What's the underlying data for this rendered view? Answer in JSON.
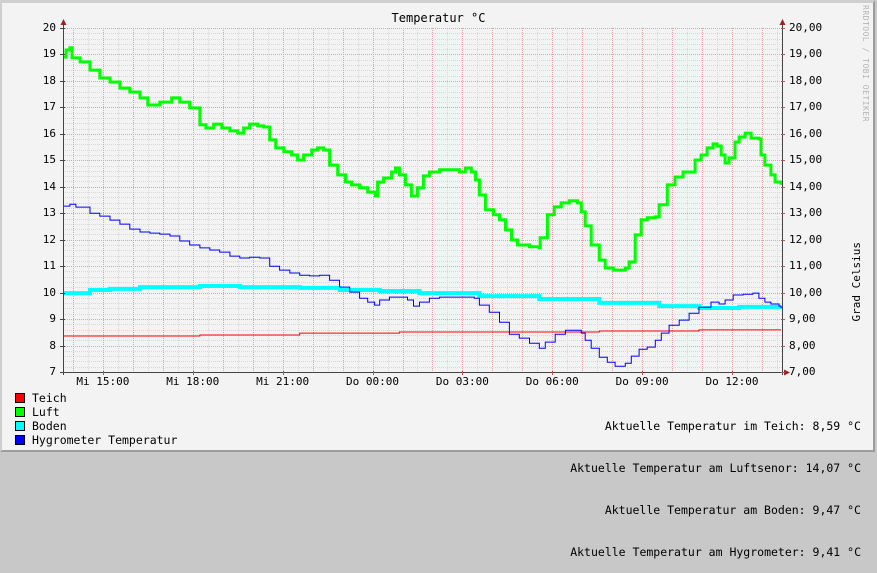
{
  "chart_data": {
    "type": "line",
    "title": "Temperatur °C",
    "ylabel": "Grad Celsius",
    "xlabel": "",
    "watermark": "RRDTOOL / TOBI OETIKER",
    "ylim": [
      7,
      20
    ],
    "y_ticks_left": [
      "20",
      "19",
      "18",
      "17",
      "16",
      "15",
      "14",
      "13",
      "12",
      "11",
      "10",
      "9",
      "8",
      "7"
    ],
    "y_ticks_right": [
      "20,00",
      "19,00",
      "18,00",
      "17,00",
      "16,00",
      "15,00",
      "14,00",
      "13,00",
      "12,00",
      "11,00",
      "10,00",
      "9,00",
      "8,00",
      "7,00"
    ],
    "x_range_hours": [
      0,
      24
    ],
    "x_start": "Mi 13:40",
    "x_ticks": [
      {
        "label": "Mi 15:00",
        "hour": 1.333
      },
      {
        "label": "Mi 18:00",
        "hour": 4.333
      },
      {
        "label": "Mi 21:00",
        "hour": 7.333
      },
      {
        "label": "Do 00:00",
        "hour": 10.333
      },
      {
        "label": "Do 03:00",
        "hour": 13.333
      },
      {
        "label": "Do 06:00",
        "hour": 16.333
      },
      {
        "label": "Do 09:00",
        "hour": 19.333
      },
      {
        "label": "Do 12:00",
        "hour": 22.333
      }
    ],
    "grid": true,
    "legend_position": "bottom-left",
    "series": [
      {
        "name": "Teich",
        "color": "#ff0000",
        "stroke": "#cc0000",
        "width": 1,
        "x": [
          0,
          4.57,
          7.9,
          11.23,
          14.57,
          17.9,
          21.23,
          23.97
        ],
        "values": [
          8.36,
          8.4,
          8.47,
          8.51,
          8.51,
          8.55,
          8.59,
          8.59
        ]
      },
      {
        "name": "Luft",
        "color": "#00ff00",
        "stroke": "#22ee22",
        "width": 3,
        "x": [
          0,
          0.1,
          0.23,
          0.3,
          0.57,
          0.9,
          1.23,
          1.57,
          1.9,
          2.23,
          2.57,
          2.83,
          3.23,
          3.63,
          3.9,
          4.23,
          4.57,
          4.77,
          5.03,
          5.3,
          5.57,
          5.83,
          6.03,
          6.23,
          6.5,
          6.7,
          6.9,
          7.1,
          7.37,
          7.63,
          7.83,
          8.03,
          8.3,
          8.5,
          8.7,
          8.9,
          9.17,
          9.43,
          9.63,
          9.9,
          10.17,
          10.43,
          10.5,
          10.7,
          10.97,
          11.1,
          11.23,
          11.43,
          11.63,
          11.83,
          12.03,
          12.23,
          12.57,
          12.9,
          13.23,
          13.43,
          13.63,
          13.77,
          13.9,
          14.1,
          14.37,
          14.57,
          14.77,
          14.97,
          15.17,
          15.57,
          15.9,
          15.93,
          16.17,
          16.4,
          16.63,
          16.9,
          17.17,
          17.3,
          17.43,
          17.63,
          17.9,
          18.1,
          18.37,
          18.77,
          18.9,
          19.1,
          19.3,
          19.5,
          19.77,
          19.9,
          20.17,
          20.43,
          20.7,
          20.9,
          21.1,
          21.3,
          21.5,
          21.7,
          21.83,
          21.97,
          22.1,
          22.23,
          22.43,
          22.57,
          22.77,
          22.97,
          23.23,
          23.3,
          23.43,
          23.63,
          23.77,
          23.97
        ],
        "values": [
          18.9,
          19.17,
          19.25,
          18.87,
          18.72,
          18.41,
          18.11,
          17.96,
          17.73,
          17.58,
          17.36,
          17.09,
          17.2,
          17.36,
          17.2,
          16.98,
          16.34,
          16.22,
          16.37,
          16.22,
          16.11,
          16.03,
          16.22,
          16.37,
          16.3,
          16.26,
          15.77,
          15.47,
          15.32,
          15.2,
          15.01,
          15.2,
          15.39,
          15.47,
          15.39,
          14.82,
          14.45,
          14.18,
          14.07,
          13.96,
          13.8,
          13.65,
          14.18,
          14.33,
          14.56,
          14.71,
          14.45,
          14.07,
          13.65,
          13.96,
          14.41,
          14.56,
          14.64,
          14.64,
          14.56,
          14.71,
          14.56,
          14.26,
          13.69,
          13.13,
          12.94,
          12.75,
          12.37,
          11.99,
          11.8,
          11.73,
          11.69,
          12.07,
          12.94,
          13.24,
          13.39,
          13.47,
          13.39,
          13.05,
          12.52,
          11.8,
          11.23,
          10.93,
          10.85,
          10.93,
          11.16,
          12.18,
          12.75,
          12.83,
          12.86,
          13.32,
          14.07,
          14.37,
          14.56,
          14.56,
          15.01,
          15.2,
          15.47,
          15.62,
          15.54,
          15.2,
          14.9,
          15.09,
          15.69,
          15.88,
          16.03,
          15.84,
          15.81,
          15.2,
          14.82,
          14.45,
          14.18,
          14.07
        ]
      },
      {
        "name": "Boden",
        "color": "#00ffff",
        "stroke": "#22eeee",
        "width": 4,
        "x": [
          0,
          0.9,
          1.57,
          2.57,
          4.57,
          5.9,
          7.9,
          9.23,
          10.57,
          11.9,
          13.9,
          15.9,
          17.9,
          19.9,
          21.23,
          22.57,
          23.97
        ],
        "values": [
          9.98,
          10.1,
          10.14,
          10.21,
          10.25,
          10.21,
          10.18,
          10.1,
          10.06,
          9.98,
          9.87,
          9.76,
          9.61,
          9.49,
          9.42,
          9.46,
          9.47
        ]
      },
      {
        "name": "Hygrometer Temperatur",
        "color": "#0000ff",
        "stroke": "#0000cc",
        "width": 1,
        "x": [
          0,
          0.23,
          0.43,
          0.9,
          1.23,
          1.57,
          1.9,
          2.23,
          2.57,
          2.9,
          3.23,
          3.57,
          3.9,
          4.23,
          4.57,
          4.9,
          5.23,
          5.57,
          5.9,
          6.23,
          6.57,
          6.9,
          7.23,
          7.57,
          7.9,
          8.23,
          8.57,
          8.9,
          9.23,
          9.57,
          9.9,
          10.17,
          10.4,
          10.57,
          10.9,
          11.23,
          11.5,
          11.7,
          11.9,
          12.23,
          12.57,
          13.23,
          13.57,
          13.73,
          13.9,
          14.23,
          14.57,
          14.9,
          15.23,
          15.57,
          15.9,
          16.1,
          16.43,
          16.77,
          17.1,
          17.3,
          17.43,
          17.63,
          17.9,
          18.17,
          18.43,
          18.77,
          18.97,
          19.23,
          19.5,
          19.77,
          19.97,
          20.23,
          20.57,
          20.9,
          21.23,
          21.63,
          21.9,
          22.1,
          22.37,
          22.7,
          23.03,
          23.23,
          23.43,
          23.63,
          23.9,
          23.97
        ],
        "values": [
          13.27,
          13.34,
          13.23,
          13.0,
          12.89,
          12.74,
          12.59,
          12.4,
          12.29,
          12.25,
          12.21,
          12.14,
          11.95,
          11.8,
          11.69,
          11.61,
          11.53,
          11.38,
          11.31,
          11.34,
          11.31,
          11.0,
          10.85,
          10.74,
          10.66,
          10.63,
          10.66,
          10.47,
          10.21,
          10.02,
          9.79,
          9.64,
          9.53,
          9.72,
          9.83,
          9.83,
          9.72,
          9.49,
          9.64,
          9.79,
          9.83,
          9.83,
          9.83,
          9.79,
          9.53,
          9.26,
          8.88,
          8.43,
          8.28,
          8.09,
          7.9,
          8.13,
          8.43,
          8.58,
          8.58,
          8.47,
          8.2,
          7.9,
          7.56,
          7.37,
          7.22,
          7.33,
          7.6,
          7.86,
          7.94,
          8.2,
          8.47,
          8.77,
          8.96,
          9.22,
          9.45,
          9.64,
          9.57,
          9.72,
          9.91,
          9.94,
          9.98,
          9.79,
          9.64,
          9.57,
          9.49,
          9.41
        ]
      }
    ]
  },
  "legend": {
    "items": [
      {
        "label": "Teich",
        "color": "#ff0000"
      },
      {
        "label": "Luft",
        "color": "#00ff00"
      },
      {
        "label": "Boden",
        "color": "#00ffff"
      },
      {
        "label": "Hygrometer Temperatur",
        "color": "#0000ff"
      }
    ]
  },
  "current_values": [
    "Aktuelle Temperatur im Teich: 8,59 °C",
    "Aktuelle Temperatur am Luftsenor: 14,07 °C",
    "Aktuelle Temperatur am Boden: 9,47 °C",
    "Aktuelle Temperatur am Hygrometer: 9,41 °C"
  ]
}
